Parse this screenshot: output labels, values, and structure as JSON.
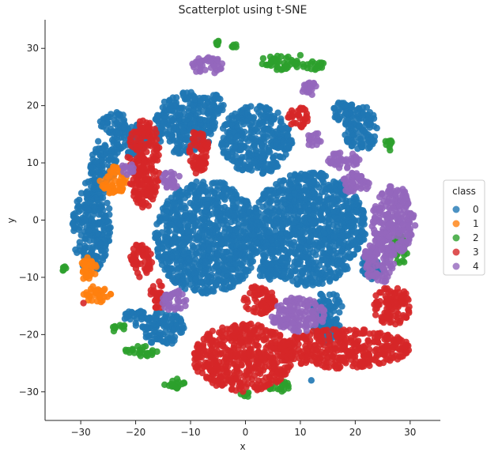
{
  "chart_data": {
    "type": "scatter",
    "title": "Scatterplot using t-SNE",
    "xlabel": "x",
    "ylabel": "y",
    "xlim": [
      -36.5,
      35.5
    ],
    "ylim": [
      -35,
      35
    ],
    "xticks": [
      -30,
      -20,
      -10,
      0,
      10,
      20,
      30
    ],
    "yticks": [
      -30,
      -20,
      -10,
      0,
      10,
      20,
      30
    ],
    "grid": false,
    "legend": {
      "title": "class",
      "placement": "right",
      "entries": [
        {
          "label": "0",
          "color": "#1f77b4"
        },
        {
          "label": "1",
          "color": "#ff7f0e"
        },
        {
          "label": "2",
          "color": "#2ca02c"
        },
        {
          "label": "3",
          "color": "#d62728"
        },
        {
          "label": "4",
          "color": "#9467bd"
        }
      ]
    },
    "series": [
      {
        "name": "0",
        "color": "#1f77b4",
        "clusters": [
          {
            "cx": -7,
            "cy": -3,
            "rx": 9.5,
            "ry": 10
          },
          {
            "cx": 11.5,
            "cy": -1.5,
            "rx": 10.5,
            "ry": 10
          },
          {
            "cx": 2,
            "cy": 14,
            "rx": 6.5,
            "ry": 6
          },
          {
            "cx": -11,
            "cy": 17,
            "rx": 5.5,
            "ry": 5.5
          },
          {
            "cx": -28,
            "cy": -1,
            "rx": 3.5,
            "ry": 8
          },
          {
            "cx": -26,
            "cy": 10,
            "rx": 2.5,
            "ry": 4
          },
          {
            "cx": -21,
            "cy": 14,
            "rx": 3.5,
            "ry": 3
          },
          {
            "cx": -24,
            "cy": 17,
            "rx": 2.5,
            "ry": 2
          },
          {
            "cx": 21,
            "cy": 16,
            "rx": 3,
            "ry": 4
          },
          {
            "cx": 18,
            "cy": 19,
            "rx": 2,
            "ry": 2
          },
          {
            "cx": 15,
            "cy": -17,
            "rx": 3,
            "ry": 4.5
          },
          {
            "cx": 5,
            "cy": -4,
            "rx": 2,
            "ry": 2
          },
          {
            "cx": -15,
            "cy": -19,
            "rx": 4,
            "ry": 3
          },
          {
            "cx": 4,
            "cy": -9,
            "rx": 2,
            "ry": 1.5
          },
          {
            "cx": 23,
            "cy": -8,
            "rx": 2,
            "ry": 2.5
          },
          {
            "cx": -6,
            "cy": 20,
            "rx": 2,
            "ry": 2
          },
          {
            "cx": 7,
            "cy": 14,
            "rx": 1.5,
            "ry": 1.5
          },
          {
            "cx": -20,
            "cy": -17,
            "rx": 2,
            "ry": 1.5
          }
        ]
      },
      {
        "name": "1",
        "color": "#ff7f0e",
        "clusters": [
          {
            "cx": -24,
            "cy": 7,
            "rx": 2.5,
            "ry": 2.5
          },
          {
            "cx": -28.5,
            "cy": -8.5,
            "rx": 1.5,
            "ry": 2.5
          },
          {
            "cx": -27,
            "cy": -13,
            "rx": 2.5,
            "ry": 1.5
          }
        ]
      },
      {
        "name": "2",
        "color": "#2ca02c",
        "clusters": [
          {
            "cx": 6,
            "cy": 27.5,
            "rx": 3.5,
            "ry": 1.3
          },
          {
            "cx": 12,
            "cy": 27,
            "rx": 3,
            "ry": 0.8
          },
          {
            "cx": 28,
            "cy": -5,
            "rx": 1.5,
            "ry": 3
          },
          {
            "cx": -19,
            "cy": -23,
            "rx": 3,
            "ry": 1
          },
          {
            "cx": -13,
            "cy": -28.5,
            "rx": 2,
            "ry": 1
          },
          {
            "cx": 6,
            "cy": -29,
            "rx": 2,
            "ry": 1
          },
          {
            "cx": 26,
            "cy": 13,
            "rx": 0.8,
            "ry": 1.2
          },
          {
            "cx": -23,
            "cy": -19,
            "rx": 1.5,
            "ry": 0.8
          },
          {
            "cx": -5,
            "cy": 31,
            "rx": 0.5,
            "ry": 0.4
          },
          {
            "cx": -2,
            "cy": 30.5,
            "rx": 0.5,
            "ry": 0.4
          },
          {
            "cx": -33,
            "cy": -8.5,
            "rx": 0.5,
            "ry": 0.4
          },
          {
            "cx": 0,
            "cy": -30.5,
            "rx": 1.5,
            "ry": 0.5
          }
        ]
      },
      {
        "name": "3",
        "color": "#d62728",
        "clusters": [
          {
            "cx": -18.5,
            "cy": 10,
            "rx": 3,
            "ry": 8
          },
          {
            "cx": -8.5,
            "cy": 12,
            "rx": 1.8,
            "ry": 4
          },
          {
            "cx": 9.5,
            "cy": 18,
            "rx": 2,
            "ry": 2
          },
          {
            "cx": -19,
            "cy": -7,
            "rx": 2,
            "ry": 3
          },
          {
            "cx": -0.5,
            "cy": -24,
            "rx": 9,
            "ry": 6
          },
          {
            "cx": 18,
            "cy": -22.5,
            "rx": 12,
            "ry": 3.5
          },
          {
            "cx": 26.5,
            "cy": -15,
            "rx": 3.5,
            "ry": 3.5
          },
          {
            "cx": 2.5,
            "cy": -14,
            "rx": 3,
            "ry": 2.5
          },
          {
            "cx": -16,
            "cy": -13,
            "rx": 1.5,
            "ry": 2.5
          }
        ]
      },
      {
        "name": "4",
        "color": "#9467bd",
        "clusters": [
          {
            "cx": 27,
            "cy": 0,
            "rx": 4,
            "ry": 6
          },
          {
            "cx": 24.5,
            "cy": -7,
            "rx": 3,
            "ry": 4
          },
          {
            "cx": 9.5,
            "cy": -16.5,
            "rx": 5,
            "ry": 3
          },
          {
            "cx": -7,
            "cy": 27,
            "rx": 3,
            "ry": 1.5
          },
          {
            "cx": 18,
            "cy": 10.5,
            "rx": 3,
            "ry": 1.5
          },
          {
            "cx": 20,
            "cy": 6.5,
            "rx": 2.5,
            "ry": 2
          },
          {
            "cx": -13.5,
            "cy": 7,
            "rx": 2,
            "ry": 1.5
          },
          {
            "cx": -21.5,
            "cy": 9,
            "rx": 1.2,
            "ry": 1.2
          },
          {
            "cx": -13,
            "cy": -14,
            "rx": 2.5,
            "ry": 1.8
          },
          {
            "cx": 11.5,
            "cy": 23,
            "rx": 1.8,
            "ry": 1.2
          },
          {
            "cx": 12.5,
            "cy": 14,
            "rx": 1.2,
            "ry": 1.5
          }
        ]
      }
    ],
    "points": [
      {
        "class": "3",
        "x": -29.5,
        "y": -14.5
      },
      {
        "class": "2",
        "x": 10,
        "y": 28.8
      },
      {
        "class": "0",
        "x": 12,
        "y": -28
      }
    ]
  }
}
